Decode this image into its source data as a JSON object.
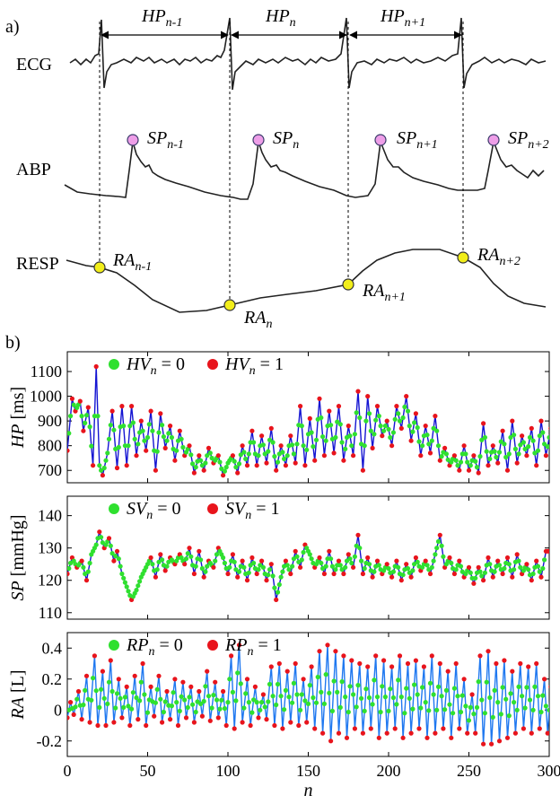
{
  "panel_a": {
    "label": "a)",
    "signal_labels": {
      "ecg": "ECG",
      "abp": "ABP",
      "resp": "RESP"
    },
    "hp_labels": [
      {
        "main": "HP",
        "sub": "n-1"
      },
      {
        "main": "HP",
        "sub": "n"
      },
      {
        "main": "HP",
        "sub": "n+1"
      }
    ],
    "sp_labels": [
      {
        "main": "SP",
        "sub": "n-1"
      },
      {
        "main": "SP",
        "sub": "n"
      },
      {
        "main": "SP",
        "sub": "n+1"
      },
      {
        "main": "SP",
        "sub": "n+2"
      }
    ],
    "ra_labels": [
      {
        "main": "RA",
        "sub": "n-1"
      },
      {
        "main": "RA",
        "sub": "n"
      },
      {
        "main": "RA",
        "sub": "n+1"
      },
      {
        "main": "RA",
        "sub": "n+2"
      }
    ],
    "colors": {
      "sp_marker": "#ee9ee8",
      "ra_marker": "#f2ee1a"
    }
  },
  "panel_b": {
    "label": "b)"
  },
  "chart_data": [
    {
      "type": "line",
      "ylabel_main": "HP",
      "ylabel_unit": " [ms]",
      "xlim": [
        0,
        300
      ],
      "ylim": [
        650,
        1180
      ],
      "yticks": [
        700,
        800,
        900,
        1000,
        1100
      ],
      "legend": [
        {
          "symbol": "HV",
          "sub": "n",
          "text": " = 0",
          "color": "#2fe02f"
        },
        {
          "symbol": "HV",
          "sub": "n",
          "text": " = 1",
          "color": "#e8141c"
        }
      ],
      "line_color": "#1414d2",
      "anchors": [
        [
          0,
          780
        ],
        [
          3,
          990
        ],
        [
          5,
          940
        ],
        [
          8,
          980
        ],
        [
          10,
          860
        ],
        [
          13,
          955
        ],
        [
          16,
          720
        ],
        [
          18,
          1120
        ],
        [
          20,
          720
        ],
        [
          22,
          680
        ],
        [
          25,
          770
        ],
        [
          28,
          940
        ],
        [
          31,
          710
        ],
        [
          34,
          960
        ],
        [
          37,
          720
        ],
        [
          40,
          960
        ],
        [
          43,
          760
        ],
        [
          46,
          900
        ],
        [
          49,
          780
        ],
        [
          52,
          940
        ],
        [
          55,
          700
        ],
        [
          58,
          930
        ],
        [
          61,
          790
        ],
        [
          64,
          880
        ],
        [
          67,
          740
        ],
        [
          70,
          860
        ],
        [
          73,
          760
        ],
        [
          76,
          800
        ],
        [
          79,
          690
        ],
        [
          82,
          760
        ],
        [
          85,
          700
        ],
        [
          88,
          790
        ],
        [
          91,
          730
        ],
        [
          94,
          760
        ],
        [
          97,
          680
        ],
        [
          100,
          730
        ],
        [
          103,
          760
        ],
        [
          106,
          690
        ],
        [
          109,
          800
        ],
        [
          112,
          720
        ],
        [
          115,
          860
        ],
        [
          118,
          720
        ],
        [
          121,
          840
        ],
        [
          124,
          730
        ],
        [
          127,
          870
        ],
        [
          130,
          700
        ],
        [
          133,
          800
        ],
        [
          136,
          720
        ],
        [
          139,
          840
        ],
        [
          142,
          730
        ],
        [
          145,
          960
        ],
        [
          148,
          720
        ],
        [
          151,
          910
        ],
        [
          154,
          740
        ],
        [
          157,
          990
        ],
        [
          160,
          760
        ],
        [
          163,
          940
        ],
        [
          166,
          770
        ],
        [
          169,
          960
        ],
        [
          172,
          740
        ],
        [
          175,
          880
        ],
        [
          178,
          760
        ],
        [
          181,
          1020
        ],
        [
          184,
          700
        ],
        [
          187,
          1000
        ],
        [
          190,
          790
        ],
        [
          193,
          960
        ],
        [
          196,
          840
        ],
        [
          199,
          900
        ],
        [
          202,
          800
        ],
        [
          205,
          960
        ],
        [
          208,
          870
        ],
        [
          211,
          1000
        ],
        [
          214,
          820
        ],
        [
          217,
          930
        ],
        [
          220,
          760
        ],
        [
          223,
          880
        ],
        [
          226,
          770
        ],
        [
          229,
          920
        ],
        [
          232,
          740
        ],
        [
          235,
          790
        ],
        [
          238,
          720
        ],
        [
          241,
          760
        ],
        [
          244,
          700
        ],
        [
          247,
          800
        ],
        [
          250,
          700
        ],
        [
          253,
          760
        ],
        [
          256,
          690
        ],
        [
          259,
          890
        ],
        [
          262,
          720
        ],
        [
          265,
          800
        ],
        [
          268,
          730
        ],
        [
          271,
          860
        ],
        [
          274,
          700
        ],
        [
          277,
          900
        ],
        [
          280,
          730
        ],
        [
          283,
          840
        ],
        [
          286,
          760
        ],
        [
          289,
          870
        ],
        [
          292,
          720
        ],
        [
          295,
          900
        ],
        [
          298,
          760
        ],
        [
          301,
          870
        ]
      ],
      "note": "Series of roughly 300 heart-period samples oscillating between about 680 and 1120 ms; green = no variation pattern, red = variation pattern."
    },
    {
      "type": "line",
      "ylabel_main": "SP",
      "ylabel_unit": " [mmHg]",
      "xlim": [
        0,
        300
      ],
      "ylim": [
        108,
        146
      ],
      "yticks": [
        110,
        120,
        130,
        140
      ],
      "legend": [
        {
          "symbol": "SV",
          "sub": "n",
          "text": " = 0",
          "color": "#2fe02f"
        },
        {
          "symbol": "SV",
          "sub": "n",
          "text": " = 1",
          "color": "#e8141c"
        }
      ],
      "line_color": "#1414d2",
      "anchors": [
        [
          0,
          122
        ],
        [
          3,
          127
        ],
        [
          6,
          124
        ],
        [
          9,
          126
        ],
        [
          12,
          120
        ],
        [
          15,
          128
        ],
        [
          18,
          131
        ],
        [
          20,
          135
        ],
        [
          23,
          130
        ],
        [
          26,
          133
        ],
        [
          29,
          126
        ],
        [
          31,
          129
        ],
        [
          34,
          122
        ],
        [
          37,
          118
        ],
        [
          40,
          114
        ],
        [
          43,
          117
        ],
        [
          46,
          121
        ],
        [
          49,
          124
        ],
        [
          52,
          127
        ],
        [
          55,
          121
        ],
        [
          58,
          128
        ],
        [
          61,
          123
        ],
        [
          64,
          127
        ],
        [
          67,
          125
        ],
        [
          70,
          128
        ],
        [
          73,
          125
        ],
        [
          76,
          130
        ],
        [
          79,
          122
        ],
        [
          82,
          129
        ],
        [
          85,
          121
        ],
        [
          88,
          126
        ],
        [
          91,
          124
        ],
        [
          94,
          130
        ],
        [
          97,
          127
        ],
        [
          100,
          122
        ],
        [
          103,
          128
        ],
        [
          106,
          121
        ],
        [
          109,
          126
        ],
        [
          112,
          120
        ],
        [
          115,
          127
        ],
        [
          118,
          122
        ],
        [
          121,
          126
        ],
        [
          124,
          120
        ],
        [
          127,
          125
        ],
        [
          130,
          114
        ],
        [
          133,
          121
        ],
        [
          136,
          126
        ],
        [
          139,
          122
        ],
        [
          142,
          129
        ],
        [
          145,
          124
        ],
        [
          148,
          131
        ],
        [
          151,
          128
        ],
        [
          154,
          124
        ],
        [
          157,
          127
        ],
        [
          160,
          122
        ],
        [
          163,
          129
        ],
        [
          166,
          122
        ],
        [
          169,
          126
        ],
        [
          172,
          122
        ],
        [
          175,
          128
        ],
        [
          178,
          124
        ],
        [
          181,
          134
        ],
        [
          184,
          122
        ],
        [
          187,
          127
        ],
        [
          190,
          121
        ],
        [
          193,
          126
        ],
        [
          196,
          122
        ],
        [
          199,
          125
        ],
        [
          202,
          121
        ],
        [
          205,
          126
        ],
        [
          208,
          120
        ],
        [
          211,
          125
        ],
        [
          214,
          121
        ],
        [
          217,
          127
        ],
        [
          220,
          123
        ],
        [
          223,
          126
        ],
        [
          226,
          122
        ],
        [
          229,
          128
        ],
        [
          232,
          134
        ],
        [
          235,
          124
        ],
        [
          238,
          127
        ],
        [
          241,
          122
        ],
        [
          244,
          126
        ],
        [
          247,
          121
        ],
        [
          250,
          124
        ],
        [
          253,
          119
        ],
        [
          256,
          124
        ],
        [
          259,
          120
        ],
        [
          262,
          127
        ],
        [
          265,
          121
        ],
        [
          268,
          126
        ],
        [
          271,
          122
        ],
        [
          274,
          127
        ],
        [
          277,
          121
        ],
        [
          280,
          128
        ],
        [
          283,
          122
        ],
        [
          286,
          125
        ],
        [
          289,
          120
        ],
        [
          292,
          126
        ],
        [
          295,
          121
        ],
        [
          298,
          129
        ],
        [
          301,
          129
        ]
      ],
      "note": "Systolic pressure series roughly between 114 and 135 mmHg."
    },
    {
      "type": "line",
      "ylabel_main": "RA",
      "ylabel_unit": " [L]",
      "xlim": [
        0,
        300
      ],
      "ylim": [
        -0.3,
        0.5
      ],
      "yticks": [
        -0.2,
        0,
        0.2,
        0.4
      ],
      "xticks": [
        0,
        50,
        100,
        150,
        200,
        250,
        300
      ],
      "xlabel": "n",
      "legend": [
        {
          "symbol": "RP",
          "sub": "n",
          "text": " = 0",
          "color": "#2fe02f"
        },
        {
          "symbol": "RP",
          "sub": "n",
          "text": " = 1",
          "color": "#e8141c"
        }
      ],
      "line_color": "#1f78f0",
      "anchors": [
        [
          0,
          -0.05
        ],
        [
          2,
          0.05
        ],
        [
          4,
          -0.03
        ],
        [
          7,
          0.12
        ],
        [
          9,
          -0.06
        ],
        [
          12,
          0.22
        ],
        [
          14,
          -0.08
        ],
        [
          17,
          0.35
        ],
        [
          19,
          -0.1
        ],
        [
          22,
          0.25
        ],
        [
          24,
          -0.1
        ],
        [
          27,
          0.32
        ],
        [
          29,
          -0.08
        ],
        [
          32,
          0.2
        ],
        [
          34,
          -0.05
        ],
        [
          37,
          0.15
        ],
        [
          39,
          -0.1
        ],
        [
          42,
          0.22
        ],
        [
          44,
          -0.06
        ],
        [
          47,
          0.3
        ],
        [
          49,
          -0.1
        ],
        [
          52,
          0.15
        ],
        [
          54,
          -0.04
        ],
        [
          57,
          0.22
        ],
        [
          59,
          -0.08
        ],
        [
          62,
          0.12
        ],
        [
          64,
          -0.06
        ],
        [
          67,
          0.2
        ],
        [
          69,
          -0.1
        ],
        [
          72,
          0.18
        ],
        [
          74,
          -0.05
        ],
        [
          77,
          0.15
        ],
        [
          79,
          -0.08
        ],
        [
          82,
          0.12
        ],
        [
          84,
          -0.04
        ],
        [
          87,
          0.25
        ],
        [
          89,
          -0.07
        ],
        [
          92,
          0.18
        ],
        [
          94,
          -0.05
        ],
        [
          97,
          0.12
        ],
        [
          99,
          -0.1
        ],
        [
          102,
          0.35
        ],
        [
          104,
          -0.12
        ],
        [
          107,
          0.42
        ],
        [
          109,
          -0.08
        ],
        [
          112,
          0.2
        ],
        [
          114,
          -0.1
        ],
        [
          117,
          0.15
        ],
        [
          119,
          -0.05
        ],
        [
          122,
          0.1
        ],
        [
          124,
          -0.06
        ],
        [
          127,
          0.28
        ],
        [
          129,
          -0.1
        ],
        [
          132,
          0.3
        ],
        [
          134,
          -0.12
        ],
        [
          137,
          0.25
        ],
        [
          139,
          -0.08
        ],
        [
          142,
          0.3
        ],
        [
          144,
          -0.1
        ],
        [
          147,
          0.2
        ],
        [
          149,
          -0.08
        ],
        [
          152,
          0.28
        ],
        [
          154,
          -0.12
        ],
        [
          157,
          0.38
        ],
        [
          159,
          -0.15
        ],
        [
          162,
          0.42
        ],
        [
          164,
          -0.2
        ],
        [
          167,
          0.38
        ],
        [
          169,
          -0.15
        ],
        [
          172,
          0.35
        ],
        [
          174,
          -0.18
        ],
        [
          177,
          0.32
        ],
        [
          179,
          -0.12
        ],
        [
          182,
          0.3
        ],
        [
          184,
          -0.15
        ],
        [
          187,
          0.28
        ],
        [
          189,
          -0.12
        ],
        [
          192,
          0.35
        ],
        [
          194,
          -0.18
        ],
        [
          197,
          0.32
        ],
        [
          199,
          -0.15
        ],
        [
          202,
          0.28
        ],
        [
          204,
          -0.12
        ],
        [
          207,
          0.35
        ],
        [
          209,
          -0.18
        ],
        [
          212,
          0.3
        ],
        [
          214,
          -0.15
        ],
        [
          217,
          0.32
        ],
        [
          219,
          -0.12
        ],
        [
          222,
          0.28
        ],
        [
          224,
          -0.18
        ],
        [
          227,
          0.35
        ],
        [
          229,
          -0.15
        ],
        [
          232,
          0.3
        ],
        [
          234,
          -0.12
        ],
        [
          237,
          0.25
        ],
        [
          239,
          -0.18
        ],
        [
          242,
          0.3
        ],
        [
          244,
          -0.12
        ],
        [
          247,
          0.2
        ],
        [
          249,
          -0.15
        ],
        [
          252,
          0.1
        ],
        [
          254,
          -0.15
        ],
        [
          257,
          0.35
        ],
        [
          259,
          -0.22
        ],
        [
          262,
          0.38
        ],
        [
          264,
          -0.22
        ],
        [
          267,
          0.3
        ],
        [
          269,
          -0.2
        ],
        [
          272,
          0.32
        ],
        [
          274,
          -0.18
        ],
        [
          277,
          0.25
        ],
        [
          279,
          -0.15
        ],
        [
          282,
          0.3
        ],
        [
          284,
          -0.12
        ],
        [
          287,
          0.28
        ],
        [
          289,
          -0.15
        ],
        [
          292,
          0.3
        ],
        [
          294,
          -0.12
        ],
        [
          297,
          0.2
        ],
        [
          299,
          -0.15
        ],
        [
          301,
          0.15
        ]
      ],
      "note": "Respiratory amplitude series oscillating between about -0.22 and 0.42 L."
    }
  ]
}
